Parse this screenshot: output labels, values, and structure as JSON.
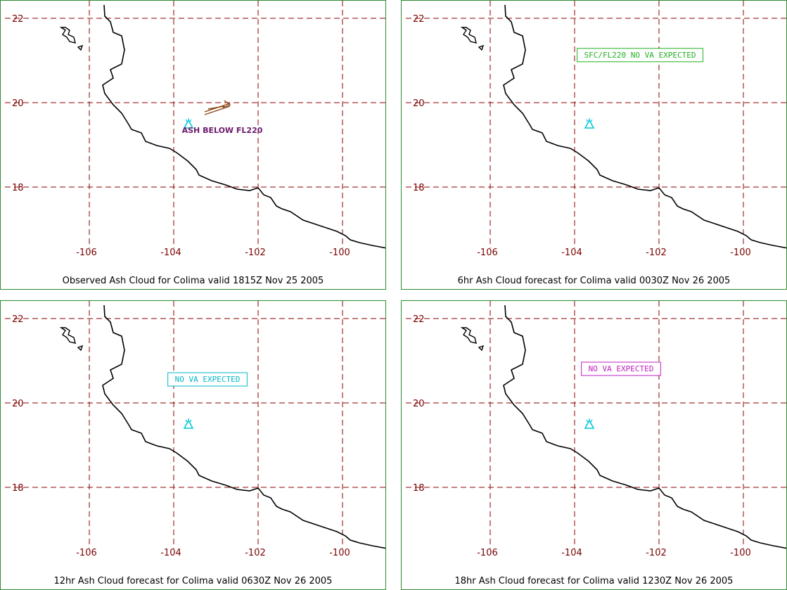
{
  "colors": {
    "border": "#2e8b2e",
    "grid": "#8b0000",
    "tick_label": "#7a0000",
    "coastline": "#000000",
    "volcano": "#00c8d8",
    "ash_arrow": "#8b4513"
  },
  "ticks": {
    "lat": [
      "22",
      "20",
      "18"
    ],
    "lon": [
      "-106",
      "-104",
      "-102",
      "-100"
    ]
  },
  "panels": [
    {
      "id": "p1",
      "caption": "Observed Ash Cloud for Colima valid 1815Z Nov 25 2005",
      "annotation": {
        "text": "ASH BELOW FL220",
        "style": "bold",
        "color": "#6a1a6a",
        "boxed": false,
        "lon": -102.85,
        "lat": 19.28
      },
      "ash_arrow": true
    },
    {
      "id": "p2",
      "caption": "6hr Ash Cloud forecast for Colima valid 0030Z Nov 26 2005",
      "annotation": {
        "text": "SFC/FL220 NO VA EXPECTED",
        "style": "mono",
        "color": "#22b022",
        "boxed": true,
        "lon": -102.45,
        "lat": 21.07
      },
      "ash_arrow": false
    },
    {
      "id": "p3",
      "caption": "12hr Ash Cloud forecast for Colima valid 0630Z Nov 26 2005",
      "annotation": {
        "text": "NO VA EXPECTED",
        "style": "mono",
        "color": "#00b8c8",
        "boxed": true,
        "lon": -103.2,
        "lat": 20.5
      },
      "ash_arrow": false
    },
    {
      "id": "p4",
      "caption": "18hr Ash Cloud forecast for Colima valid 1230Z Nov 26 2005",
      "annotation": {
        "text": "NO VA EXPECTED",
        "style": "mono",
        "color": "#c020c0",
        "boxed": true,
        "lon": -102.9,
        "lat": 20.75
      },
      "ash_arrow": false
    }
  ]
}
